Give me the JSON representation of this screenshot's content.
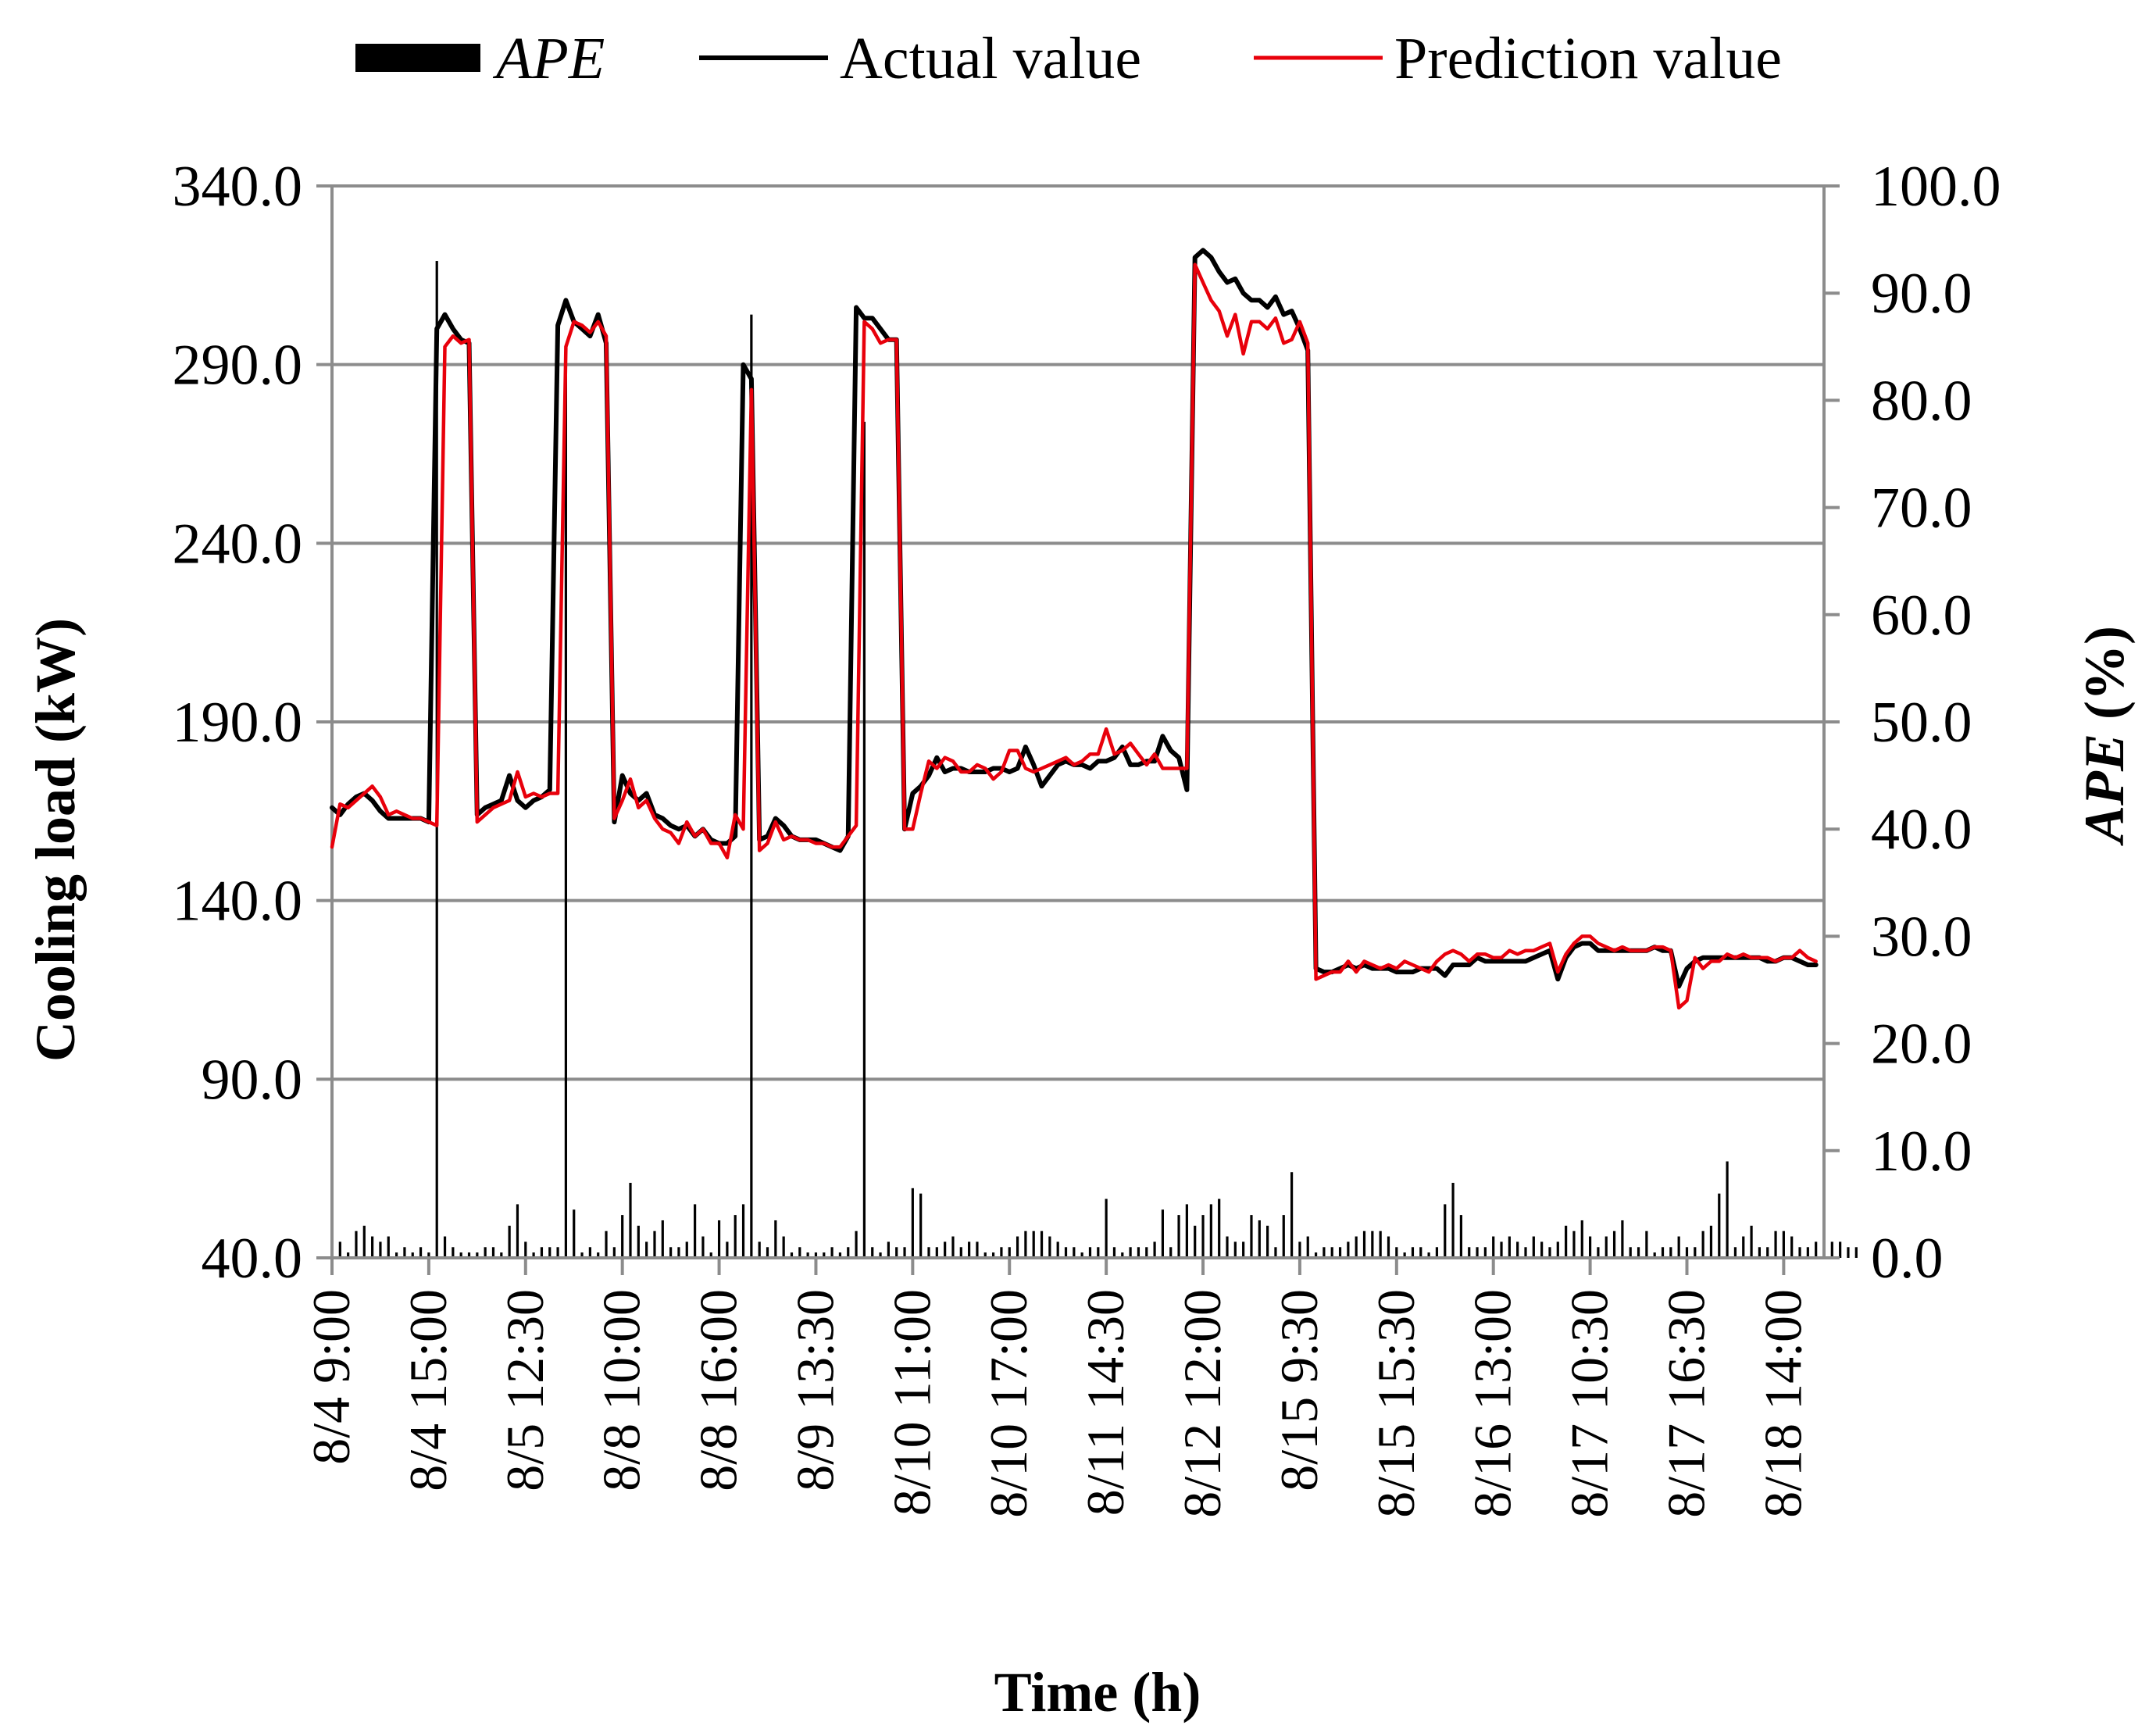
{
  "chart_data": {
    "type": "line",
    "legend": {
      "position": "top",
      "entries": [
        {
          "label": "APE",
          "kind": "bar",
          "italic": true
        },
        {
          "label": "Actual value",
          "kind": "line"
        },
        {
          "label": "Prediction value",
          "kind": "line"
        }
      ]
    },
    "xlabel": "Time (h)",
    "ylabel_left": "Cooling load (kW)",
    "ylabel_right_parts": [
      {
        "text": "APE",
        "italic": true
      },
      {
        "text": " (%)",
        "italic": false
      }
    ],
    "ylim_left": [
      40,
      340
    ],
    "ylim_right": [
      0,
      100
    ],
    "yticks_left": [
      "40.0",
      "90.0",
      "140.0",
      "190.0",
      "240.0",
      "290.0",
      "340.0"
    ],
    "yticks_right": [
      "0.0",
      "10.0",
      "20.0",
      "30.0",
      "40.0",
      "50.0",
      "60.0",
      "70.0",
      "80.0",
      "90.0",
      "100.0"
    ],
    "x_tick_labels": [
      "8/4 9:00",
      "8/4 15:00",
      "8/5 12:30",
      "8/8 10:00",
      "8/8 16:00",
      "8/9 13:30",
      "8/10 11:00",
      "8/10 17:00",
      "8/11 14:30",
      "8/12 12:00",
      "8/15 9:30",
      "8/15 15:30",
      "8/16 13:00",
      "8/17 10:30",
      "8/17 16:30",
      "8/18 14:00"
    ],
    "points_per_tick": 12,
    "n_points": 186,
    "grid": {
      "horizontal": true,
      "vertical": false
    },
    "colors": {
      "actual": "#000000",
      "prediction": "#e8000b",
      "ape": "#000000",
      "grid": "#8c8c8c"
    },
    "series": [
      {
        "name": "Actual value",
        "axis": "left",
        "values": [
          166,
          164,
          167,
          169,
          170,
          168,
          165,
          163,
          163,
          163,
          163,
          163,
          162,
          300,
          304,
          300,
          297,
          296,
          164,
          166,
          167,
          168,
          175,
          168,
          166,
          168,
          169,
          171,
          301,
          308,
          302,
          300,
          298,
          304,
          296,
          162,
          175,
          170,
          168,
          170,
          164,
          163,
          161,
          160,
          161,
          158,
          160,
          157,
          156,
          156,
          158,
          290,
          286,
          157,
          158,
          163,
          161,
          158,
          157,
          157,
          157,
          156,
          155,
          154,
          158,
          306,
          303,
          303,
          300,
          297,
          297,
          160,
          170,
          172,
          175,
          180,
          176,
          177,
          177,
          176,
          176,
          176,
          177,
          177,
          176,
          177,
          183,
          178,
          172,
          175,
          178,
          179,
          178,
          178,
          177,
          179,
          179,
          180,
          183,
          178,
          178,
          179,
          179,
          186,
          182,
          180,
          171,
          320,
          322,
          320,
          316,
          313,
          314,
          310,
          308,
          308,
          306,
          309,
          304,
          305,
          300,
          294,
          121,
          120,
          120,
          121,
          122,
          121,
          122,
          121,
          121,
          121,
          120,
          120,
          120,
          121,
          121,
          121,
          119,
          122,
          122,
          122,
          124,
          123,
          123,
          123,
          123,
          123,
          123,
          124,
          125,
          126,
          118,
          124,
          127,
          128,
          128,
          126,
          126,
          126,
          126,
          126,
          126,
          126,
          127,
          126,
          126,
          116,
          121,
          123,
          124,
          124,
          124,
          124,
          124,
          124,
          124,
          124,
          123,
          123,
          124,
          124,
          123,
          122,
          122
        ]
      },
      {
        "name": "Prediction value",
        "axis": "left",
        "values": [
          155,
          167,
          166,
          168,
          170,
          172,
          169,
          164,
          165,
          164,
          163,
          163,
          162,
          161,
          295,
          298,
          296,
          297,
          162,
          164,
          166,
          167,
          168,
          176,
          169,
          170,
          169,
          170,
          170,
          295,
          302,
          301,
          299,
          302,
          298,
          163,
          168,
          174,
          166,
          168,
          163,
          160,
          159,
          156,
          162,
          158,
          160,
          156,
          156,
          152,
          164,
          160,
          283,
          154,
          156,
          162,
          157,
          158,
          157,
          157,
          156,
          156,
          155,
          155,
          158,
          161,
          302,
          300,
          296,
          297,
          297,
          160,
          160,
          170,
          179,
          177,
          180,
          179,
          176,
          176,
          178,
          177,
          174,
          176,
          182,
          182,
          177,
          176,
          177,
          178,
          179,
          180,
          178,
          179,
          181,
          181,
          188,
          181,
          182,
          184,
          181,
          178,
          181,
          177,
          177,
          177,
          177,
          318,
          313,
          308,
          305,
          298,
          304,
          293,
          302,
          302,
          300,
          303,
          296,
          297,
          302,
          296,
          118,
          119,
          120,
          120,
          123,
          120,
          123,
          122,
          121,
          122,
          121,
          123,
          122,
          121,
          120,
          123,
          125,
          126,
          125,
          123,
          125,
          125,
          124,
          124,
          126,
          125,
          126,
          126,
          127,
          128,
          120,
          125,
          128,
          130,
          130,
          128,
          127,
          126,
          127,
          126,
          126,
          126,
          127,
          127,
          126,
          110,
          112,
          124,
          121,
          123,
          123,
          125,
          124,
          125,
          124,
          124,
          124,
          123,
          124,
          124,
          126,
          124,
          123
        ]
      },
      {
        "name": "APE",
        "axis": "right",
        "type": "bar",
        "values": [
          1.0,
          1.5,
          0.5,
          2.5,
          3.0,
          2.0,
          1.5,
          2.0,
          0.5,
          1.0,
          0.5,
          1.0,
          0.5,
          93.0,
          2.0,
          1.0,
          0.5,
          0.5,
          0.5,
          1.0,
          1.0,
          0.5,
          3.0,
          5.0,
          1.5,
          0.5,
          1.0,
          1.0,
          1.0,
          85.0,
          4.5,
          0.5,
          1.0,
          0.5,
          2.5,
          1.0,
          4.0,
          7.0,
          3.0,
          1.5,
          2.5,
          3.5,
          1.0,
          1.0,
          1.5,
          5.0,
          2.0,
          0.5,
          3.5,
          1.5,
          4.0,
          5.0,
          88.0,
          1.5,
          1.0,
          3.5,
          2.0,
          0.5,
          1.0,
          0.5,
          0.5,
          0.5,
          1.0,
          0.5,
          1.0,
          2.5,
          78.0,
          1.0,
          0.5,
          1.5,
          1.0,
          1.0,
          6.5,
          6.0,
          1.0,
          1.0,
          1.5,
          2.0,
          1.0,
          1.5,
          1.5,
          0.5,
          0.5,
          1.0,
          1.0,
          2.0,
          2.5,
          2.5,
          2.5,
          2.0,
          1.5,
          1.0,
          1.0,
          0.5,
          1.0,
          1.0,
          5.5,
          1.0,
          0.5,
          1.0,
          1.0,
          1.0,
          1.5,
          4.5,
          1.0,
          4.0,
          5.0,
          3.0,
          4.0,
          5.0,
          5.5,
          2.0,
          1.5,
          1.5,
          4.0,
          3.5,
          3.0,
          1.0,
          4.0,
          8.0,
          1.5,
          2.0,
          0.5,
          1.0,
          1.0,
          1.0,
          1.5,
          2.0,
          2.5,
          2.5,
          2.5,
          2.0,
          1.0,
          0.5,
          1.0,
          1.0,
          0.5,
          1.0,
          5.0,
          7.0,
          4.0,
          1.0,
          1.0,
          1.0,
          2.0,
          1.5,
          2.0,
          1.5,
          1.0,
          2.0,
          1.5,
          1.0,
          1.5,
          3.0,
          2.5,
          3.5,
          2.0,
          1.0,
          2.0,
          2.5,
          3.5,
          1.0,
          1.0,
          2.5,
          0.5,
          1.0,
          1.0,
          2.0,
          1.0,
          1.0,
          2.5,
          3.0,
          6.0,
          9.0,
          1.0,
          2.0,
          3.0,
          1.0,
          1.0,
          2.5,
          2.5,
          2.0,
          1.0,
          1.0,
          1.5,
          0.5,
          1.5,
          1.5,
          1.0,
          1.0
        ]
      }
    ]
  }
}
